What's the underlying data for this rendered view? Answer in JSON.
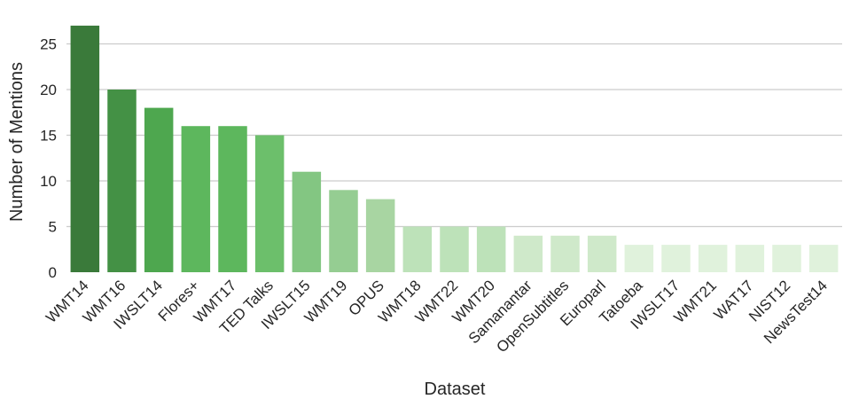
{
  "chart_data": {
    "type": "bar",
    "categories": [
      "WMT14",
      "WMT16",
      "IWSLT14",
      "Flores+",
      "WMT17",
      "TED Talks",
      "IWSLT15",
      "WMT19",
      "OPUS",
      "WMT18",
      "WMT22",
      "WMT20",
      "Samanantar",
      "OpenSubtitles",
      "Europarl",
      "Tatoeba",
      "IWSLT17",
      "WMT21",
      "WAT17",
      "NIST12",
      "NewsTest14"
    ],
    "values": [
      27,
      20,
      18,
      16,
      16,
      15,
      11,
      9,
      8,
      5,
      5,
      5,
      4,
      4,
      4,
      3,
      3,
      3,
      3,
      3,
      3
    ],
    "xlabel": "Dataset",
    "ylabel": "Number of Mentions",
    "ylim": [
      0,
      28.35
    ],
    "yticks": [
      0,
      5,
      10,
      15,
      20,
      25
    ],
    "grid": "horizontal",
    "colors": [
      "#3a7a3a",
      "#449145",
      "#4ea74f",
      "#5db75d",
      "#5db75d",
      "#6cbf6b",
      "#83c682",
      "#95cd92",
      "#a8d5a2",
      "#bde2b9",
      "#bde2b9",
      "#bde2b9",
      "#cfe9ca",
      "#cfe9ca",
      "#cfe9ca",
      "#e0f2dc",
      "#e0f2dc",
      "#e0f2dc",
      "#e0f2dc",
      "#e0f2dc",
      "#e0f2dc"
    ]
  }
}
